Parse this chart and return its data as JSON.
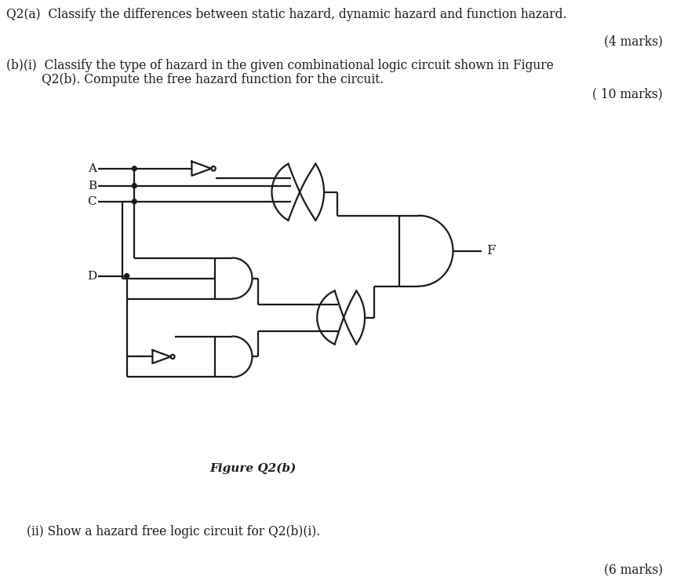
{
  "title_q2a": "Q2(a)  Classify the differences between static hazard, dynamic hazard and function hazard.",
  "marks_q2a": "(4 marks)",
  "line1_q2bi": "(b)(i)  Classify the type of hazard in the given combinational logic circuit shown in Figure",
  "line2_q2bi": "Q2(b). Compute the free hazard function for the circuit.",
  "marks_q2bi": "( 10 marks)",
  "figure_label": "Figure Q2(b)",
  "title_q2bii": "(ii) Show a hazard free logic circuit for Q2(b)(i).",
  "marks_q2bii": "(6 marks)",
  "bg_color": "#ffffff",
  "text_color": "#1a1a1a",
  "line_color": "#1a1a1a",
  "font_size_main": 11.2,
  "lw": 1.6
}
